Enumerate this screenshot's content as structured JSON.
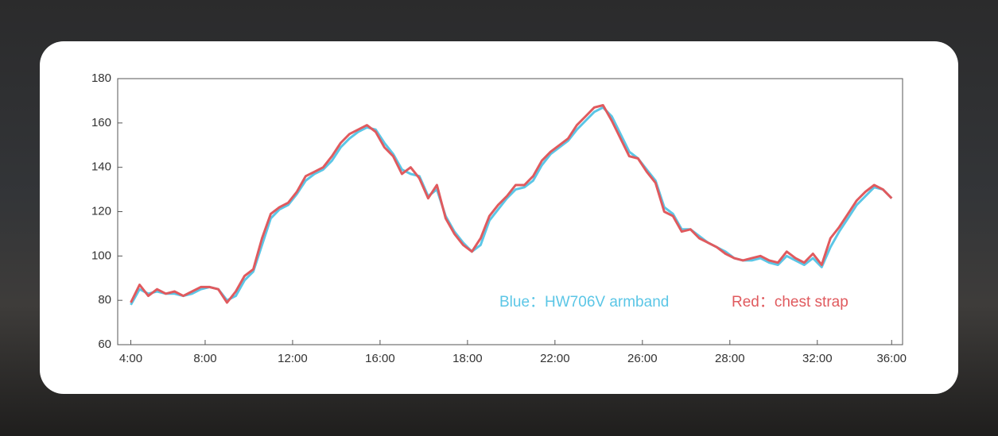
{
  "chart_data": {
    "type": "line",
    "x": [
      0,
      2,
      4,
      6,
      8,
      10,
      12,
      14,
      16,
      18,
      20,
      22,
      24,
      26,
      28,
      30,
      32,
      34,
      36,
      38,
      40,
      42,
      44,
      46,
      48,
      50,
      52,
      54,
      56,
      58,
      60,
      62,
      64,
      66,
      68,
      70,
      72,
      74,
      76,
      78,
      80,
      82,
      84,
      86,
      88,
      90,
      92,
      94,
      96,
      98,
      100,
      102,
      104,
      106,
      108,
      110,
      112,
      114,
      116,
      118,
      120,
      122,
      124,
      126,
      128,
      130,
      132,
      134,
      136,
      138,
      140,
      142,
      144,
      146,
      148,
      150,
      152,
      154,
      156,
      158,
      160,
      162,
      164,
      166,
      168,
      170,
      172,
      174
    ],
    "series": [
      {
        "name": "Blue：HW706V armband",
        "color": "#5bc6e6",
        "values": [
          78,
          85,
          83,
          84,
          83,
          83,
          82,
          83,
          85,
          86,
          85,
          80,
          82,
          89,
          93,
          105,
          117,
          121,
          123,
          128,
          134,
          137,
          139,
          143,
          149,
          153,
          156,
          158,
          157,
          151,
          146,
          139,
          137,
          136,
          127,
          130,
          118,
          111,
          106,
          102,
          105,
          116,
          121,
          126,
          130,
          131,
          134,
          141,
          146,
          149,
          152,
          157,
          161,
          165,
          167,
          163,
          155,
          147,
          144,
          139,
          134,
          122,
          119,
          112,
          112,
          109,
          106,
          104,
          102,
          99,
          98,
          98,
          99,
          97,
          96,
          100,
          98,
          96,
          99,
          95,
          104,
          111,
          117,
          123,
          127,
          131,
          130,
          126
        ]
      },
      {
        "name": "Red：chest strap",
        "color": "#e05a5e",
        "values": [
          79,
          87,
          82,
          85,
          83,
          84,
          82,
          84,
          86,
          86,
          85,
          79,
          84,
          91,
          94,
          108,
          119,
          122,
          124,
          129,
          136,
          138,
          140,
          145,
          151,
          155,
          157,
          159,
          156,
          149,
          145,
          137,
          140,
          135,
          126,
          132,
          117,
          110,
          105,
          102,
          108,
          118,
          123,
          127,
          132,
          132,
          136,
          143,
          147,
          150,
          153,
          159,
          163,
          167,
          168,
          161,
          153,
          145,
          144,
          138,
          133,
          120,
          118,
          111,
          112,
          108,
          106,
          104,
          101,
          99,
          98,
          99,
          100,
          98,
          97,
          102,
          99,
          97,
          101,
          96,
          108,
          113,
          119,
          125,
          129,
          132,
          130,
          126
        ]
      }
    ],
    "xlim": [
      -3,
      176.5
    ],
    "xticks": [
      {
        "value": 0,
        "label": "4:00"
      },
      {
        "value": 17,
        "label": "8:00"
      },
      {
        "value": 37,
        "label": "12:00"
      },
      {
        "value": 57,
        "label": "16:00"
      },
      {
        "value": 77,
        "label": "18:00"
      },
      {
        "value": 97,
        "label": "22:00"
      },
      {
        "value": 117,
        "label": "26:00"
      },
      {
        "value": 137,
        "label": "28:00"
      },
      {
        "value": 157,
        "label": "32:00"
      },
      {
        "value": 174,
        "label": "36:00"
      }
    ],
    "ylim": [
      60,
      180
    ],
    "yticks": [
      60,
      80,
      100,
      120,
      140,
      160,
      180
    ]
  }
}
